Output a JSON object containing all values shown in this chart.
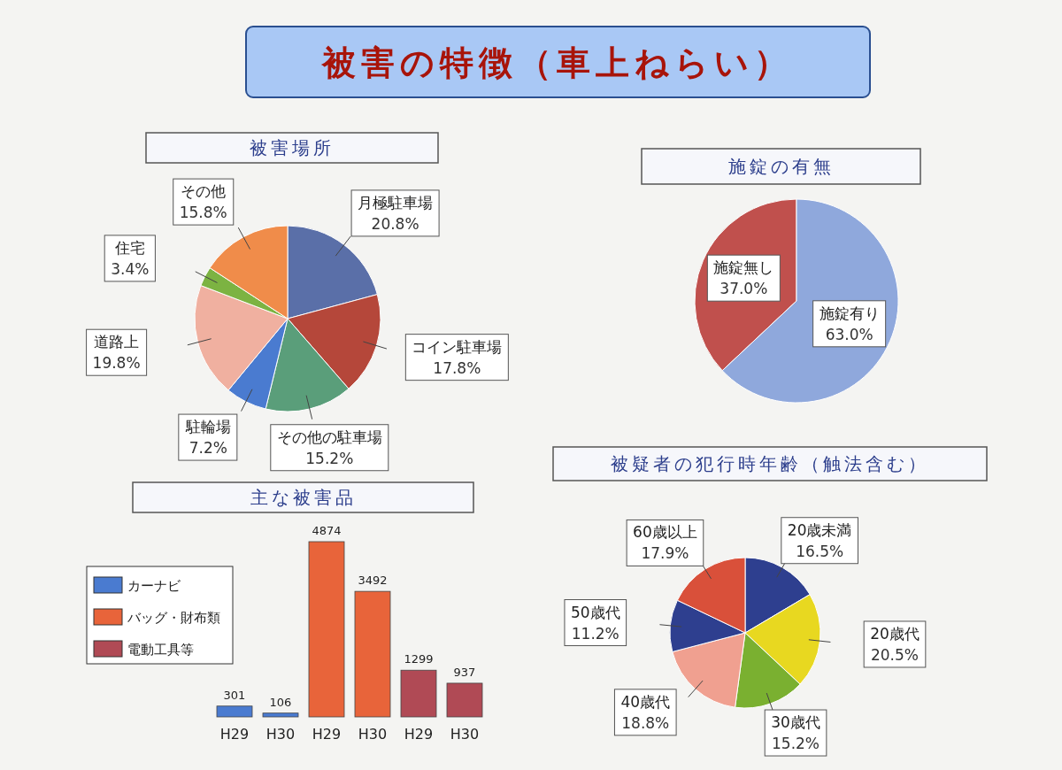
{
  "chart_data": [
    {
      "type": "pie",
      "title": "被害の特徴（車上ねらい）",
      "subtitle": "被害場所",
      "categories": [
        "月極駐車場",
        "コイン駐車場",
        "その他の駐車場",
        "駐輪場",
        "道路上",
        "住宅",
        "その他"
      ],
      "values": [
        20.8,
        17.8,
        15.2,
        7.2,
        19.8,
        3.4,
        15.8
      ],
      "value_labels": [
        "20.8%",
        "17.8%",
        "15.2%",
        "7.2%",
        "19.8%",
        "3.4%",
        "15.8%"
      ],
      "colors": [
        "#5a6fa8",
        "#b5473a",
        "#5a9e7a",
        "#4a7bd0",
        "#f0b0a0",
        "#7cb342",
        "#f08c4a"
      ]
    },
    {
      "type": "pie",
      "title": "施錠の有無",
      "categories": [
        "施錠無し",
        "施錠有り"
      ],
      "values": [
        37.0,
        63.0
      ],
      "value_labels": [
        "37.0%",
        "63.0%"
      ],
      "colors": [
        "#c0504d",
        "#8fa8dc"
      ]
    },
    {
      "type": "bar",
      "title": "主な被害品",
      "categories": [
        "H29",
        "H30",
        "H29",
        "H30",
        "H29",
        "H30"
      ],
      "series": [
        {
          "name": "カーナビ",
          "color": "#4a7bd0",
          "values": [
            301,
            106,
            null,
            null,
            null,
            null
          ],
          "value_labels": [
            "301",
            "106",
            null,
            null,
            null,
            null
          ]
        },
        {
          "name": "バッグ・財布類",
          "color": "#e8643a",
          "values": [
            null,
            null,
            4874,
            3492,
            null,
            null
          ],
          "value_labels": [
            null,
            null,
            "4874",
            "3492",
            null,
            null
          ]
        },
        {
          "name": "電動工具等",
          "color": "#b04a55",
          "values": [
            null,
            null,
            null,
            null,
            1299,
            937
          ],
          "value_labels": [
            null,
            null,
            null,
            null,
            "1299",
            "937"
          ]
        }
      ],
      "legend": "left"
    },
    {
      "type": "pie",
      "title": "被疑者の犯行時年齢（触法含む）",
      "categories": [
        "20歳未満",
        "20歳代",
        "30歳代",
        "40歳代",
        "50歳代",
        "60歳以上"
      ],
      "values": [
        16.5,
        20.5,
        15.2,
        18.8,
        11.2,
        17.9
      ],
      "value_labels": [
        "16.5%",
        "20.5%",
        "15.2%",
        "18.8%",
        "11.2%",
        "17.9%"
      ],
      "colors": [
        "#2e3f8f",
        "#e8d820",
        "#7ab030",
        "#f0a090",
        "#2e3f8f",
        "#d9503a"
      ]
    }
  ]
}
